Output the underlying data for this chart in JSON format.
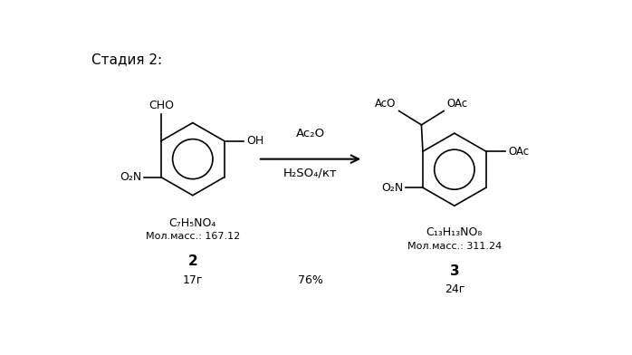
{
  "title": "Стадия 2:",
  "bg_color": "#ffffff",
  "figsize": [
    6.98,
    3.92
  ],
  "dpi": 100,
  "reactant_formula": "C₇H₅NO₄",
  "reactant_mw_label": "Мол.масс.: 167.12",
  "reactant_number": "2",
  "reactant_amount": "17г",
  "product_formula": "C₁₃H₁₃NO₈",
  "product_mw_label": "Мол.масс.: 311.24",
  "product_number": "3",
  "product_amount": "24г",
  "reagent_line1": "Ac₂O",
  "reagent_line2": "H₂SO₄/кт",
  "yield_text": "76%",
  "text_color": "#000000",
  "line_color": "#000000"
}
